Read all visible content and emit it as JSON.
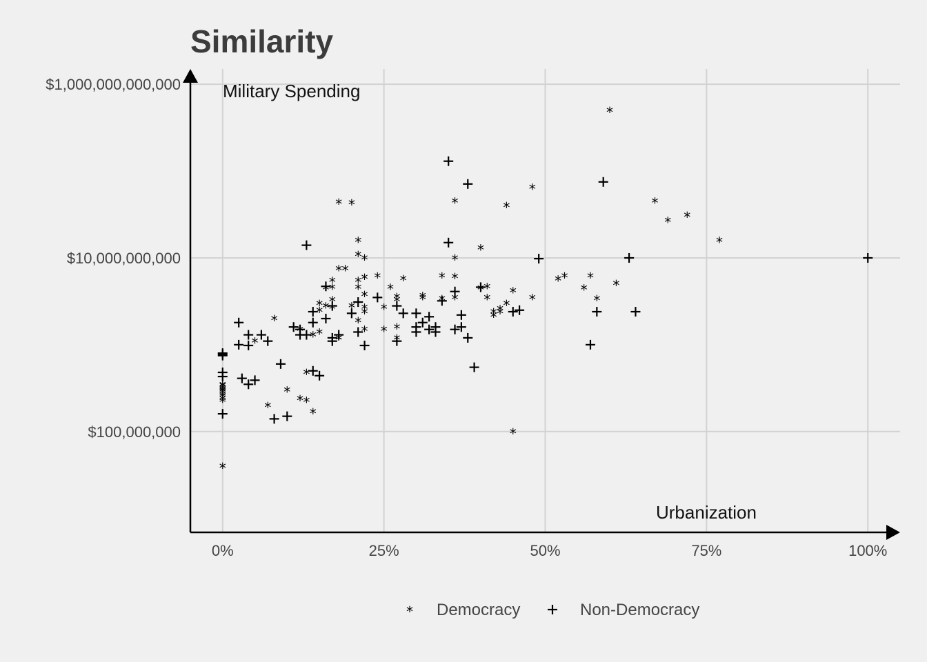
{
  "chart_data": {
    "type": "scatter",
    "title": "Similarity",
    "xlabel": "Urbanization",
    "ylabel": "Military Spending",
    "x_scale": "linear",
    "y_scale": "log10",
    "xlim": [
      -5,
      105
    ],
    "ylim": [
      6900000,
      1500000000000
    ],
    "x_ticks": [
      {
        "value": 0,
        "label": "0%"
      },
      {
        "value": 25,
        "label": "25%"
      },
      {
        "value": 50,
        "label": "50%"
      },
      {
        "value": 75,
        "label": "75%"
      },
      {
        "value": 100,
        "label": "100%"
      }
    ],
    "y_ticks": [
      {
        "value": 100000000,
        "label": "$100,000,000"
      },
      {
        "value": 10000000000,
        "label": "$10,000,000,000"
      },
      {
        "value": 1000000000000,
        "label": "$1,000,000,000,000"
      }
    ],
    "grid": true,
    "legend_position": "bottom",
    "series": [
      {
        "name": "Democracy",
        "symbol": "*",
        "x_units": "percent",
        "y_units": "USD",
        "points": [
          [
            0,
            40000000
          ],
          [
            0,
            230000000
          ],
          [
            0,
            240000000
          ],
          [
            0,
            260000000
          ],
          [
            0,
            270000000
          ],
          [
            0,
            290000000
          ],
          [
            0,
            300000000
          ],
          [
            0,
            310000000
          ],
          [
            0,
            320000000
          ],
          [
            0,
            340000000
          ],
          [
            0,
            350000000
          ],
          [
            5,
            1100000000
          ],
          [
            7,
            200000000
          ],
          [
            8,
            2000000000
          ],
          [
            10,
            300000000
          ],
          [
            12,
            240000000
          ],
          [
            12,
            1500000000
          ],
          [
            13,
            230000000
          ],
          [
            13,
            480000000
          ],
          [
            14,
            1300000000
          ],
          [
            14,
            170000000
          ],
          [
            15,
            1400000000
          ],
          [
            15,
            2500000000
          ],
          [
            15,
            3000000000
          ],
          [
            16,
            2800000000
          ],
          [
            16,
            4500000000
          ],
          [
            17,
            2700000000
          ],
          [
            17,
            3300000000
          ],
          [
            17,
            5500000000
          ],
          [
            17,
            4600000000
          ],
          [
            18,
            7500000000
          ],
          [
            18,
            1200000000
          ],
          [
            18,
            1200000000
          ],
          [
            18,
            44000000000
          ],
          [
            19,
            7500000000
          ],
          [
            20,
            43000000000
          ],
          [
            20,
            2800000000
          ],
          [
            21,
            5500000000
          ],
          [
            21,
            1900000000
          ],
          [
            21,
            4600000000
          ],
          [
            21,
            16000000000
          ],
          [
            21,
            11000000000
          ],
          [
            22,
            2700000000
          ],
          [
            22,
            3800000000
          ],
          [
            22,
            10000000000
          ],
          [
            22,
            6000000000
          ],
          [
            22,
            2400000000
          ],
          [
            22,
            1500000000
          ],
          [
            24,
            6200000000
          ],
          [
            25,
            1500000000
          ],
          [
            25,
            2700000000
          ],
          [
            26,
            4600000000
          ],
          [
            27,
            1200000000
          ],
          [
            27,
            3600000000
          ],
          [
            27,
            1600000000
          ],
          [
            27,
            3300000000
          ],
          [
            28,
            5800000000
          ],
          [
            31,
            3700000000
          ],
          [
            31,
            3500000000
          ],
          [
            34,
            6200000000
          ],
          [
            34,
            3400000000
          ],
          [
            36,
            45000000000
          ],
          [
            36,
            3500000000
          ],
          [
            36,
            6100000000
          ],
          [
            36,
            10000000000
          ],
          [
            40,
            13000000000
          ],
          [
            40,
            4500000000
          ],
          [
            41,
            4700000000
          ],
          [
            41,
            3500000000
          ],
          [
            42,
            2400000000
          ],
          [
            42,
            2200000000
          ],
          [
            43,
            2600000000
          ],
          [
            43,
            2400000000
          ],
          [
            44,
            3000000000
          ],
          [
            44,
            40000000000
          ],
          [
            45,
            100000000
          ],
          [
            45,
            4200000000
          ],
          [
            48,
            65000000000
          ],
          [
            48,
            3500000000
          ],
          [
            52,
            5700000000
          ],
          [
            53,
            6200000000
          ],
          [
            56,
            4500000000
          ],
          [
            57,
            6200000000
          ],
          [
            58,
            3400000000
          ],
          [
            60,
            500000000000
          ],
          [
            61,
            5100000000
          ],
          [
            67,
            45000000000
          ],
          [
            69,
            27000000000
          ],
          [
            72,
            31000000000
          ],
          [
            77,
            16000000000
          ]
        ]
      },
      {
        "name": "Non-Democracy",
        "symbol": "+",
        "x_units": "percent",
        "y_units": "USD",
        "points": [
          [
            0,
            160000000
          ],
          [
            0,
            430000000
          ],
          [
            0,
            480000000
          ],
          [
            0,
            750000000
          ],
          [
            0,
            780000000
          ],
          [
            0,
            800000000
          ],
          [
            2.5,
            1800000000
          ],
          [
            2.5,
            1000000000
          ],
          [
            3,
            410000000
          ],
          [
            4,
            1300000000
          ],
          [
            4,
            980000000
          ],
          [
            4,
            350000000
          ],
          [
            5,
            390000000
          ],
          [
            6,
            1300000000
          ],
          [
            7,
            1100000000
          ],
          [
            8,
            140000000
          ],
          [
            9,
            600000000
          ],
          [
            10,
            150000000
          ],
          [
            11,
            1600000000
          ],
          [
            12,
            1300000000
          ],
          [
            12,
            1500000000
          ],
          [
            13,
            14000000000
          ],
          [
            13,
            1300000000
          ],
          [
            14,
            2400000000
          ],
          [
            14,
            500000000
          ],
          [
            14,
            1800000000
          ],
          [
            15,
            440000000
          ],
          [
            16,
            2000000000
          ],
          [
            16,
            4700000000
          ],
          [
            17,
            2800000000
          ],
          [
            17,
            1100000000
          ],
          [
            17,
            1200000000
          ],
          [
            18,
            1300000000
          ],
          [
            20,
            2300000000
          ],
          [
            21,
            1400000000
          ],
          [
            21,
            3100000000
          ],
          [
            22,
            980000000
          ],
          [
            24,
            3500000000
          ],
          [
            27,
            2800000000
          ],
          [
            27,
            1100000000
          ],
          [
            28,
            2300000000
          ],
          [
            30,
            1600000000
          ],
          [
            30,
            1400000000
          ],
          [
            30,
            2300000000
          ],
          [
            31,
            1800000000
          ],
          [
            32,
            2100000000
          ],
          [
            32,
            1500000000
          ],
          [
            33,
            1400000000
          ],
          [
            33,
            1600000000
          ],
          [
            34,
            3200000000
          ],
          [
            35,
            130000000000
          ],
          [
            35,
            15000000000
          ],
          [
            36,
            4100000000
          ],
          [
            36,
            1500000000
          ],
          [
            37,
            2200000000
          ],
          [
            37,
            1600000000
          ],
          [
            38,
            1200000000
          ],
          [
            38,
            71000000000
          ],
          [
            39,
            550000000
          ],
          [
            40,
            4600000000
          ],
          [
            45,
            2400000000
          ],
          [
            46,
            2500000000
          ],
          [
            49,
            9800000000
          ],
          [
            57,
            1000000000
          ],
          [
            58,
            2400000000
          ],
          [
            59,
            75000000000
          ],
          [
            63,
            10000000000
          ],
          [
            64,
            2400000000
          ],
          [
            100,
            10000000000
          ]
        ]
      }
    ]
  }
}
